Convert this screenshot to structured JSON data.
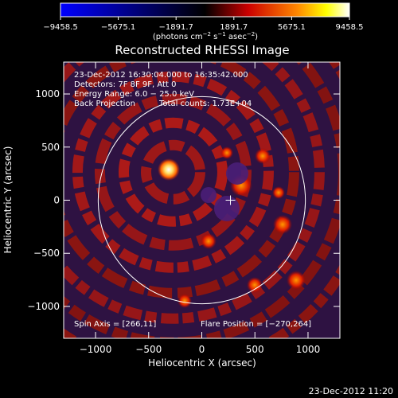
{
  "colorbar": {
    "ticks": [
      "−9458.5",
      "−5675.1",
      "−1891.7",
      "1891.7",
      "5675.1",
      "9458.5"
    ],
    "unit_label": "(photons cm",
    "unit_exp1": "−2",
    "unit_mid": " s",
    "unit_exp2": "−1",
    "unit_end": " asec",
    "unit_exp3": "−2",
    "unit_close": ")",
    "vmin": -9458.5,
    "vmax": 9458.5,
    "colormap": [
      "#0000ff",
      "#000000",
      "#ff0000",
      "#ffff00",
      "#ffffff"
    ]
  },
  "chart_data": {
    "type": "heatmap",
    "title": "Reconstructed RHESSI Image",
    "xlabel": "Heliocentric X (arcsec)",
    "ylabel": "Heliocentric Y (arcsec)",
    "xlim": [
      -1300,
      1300
    ],
    "ylim": [
      -1300,
      1300
    ],
    "xticks": [
      -1000,
      -500,
      0,
      500,
      1000
    ],
    "yticks": [
      -1000,
      -500,
      0,
      500,
      1000
    ],
    "xtick_labels": [
      "−1000",
      "−500",
      "0",
      "500",
      "1000"
    ],
    "ytick_labels": [
      "−1000",
      "−500",
      "0",
      "500",
      "1000"
    ],
    "solar_limb_radius": 975,
    "flare_position": [
      -270,
      264
    ],
    "cross_position": [
      270,
      0
    ],
    "background_color": "#2a1040",
    "annotations": {
      "line1": "23-Dec-2012 16:30:04.000 to 16:35:42.000",
      "line2": "Detectors: 7F 8F 9F, Att 0",
      "line3": "Energy Range: 6.0 − 25.0 keV",
      "line4a": "Back Projection",
      "line4b": "Total counts: 1.73E+04",
      "spin_axis": "Spin Axis = [266,11]",
      "flare_pos_text": "Flare Position = [−270,264]"
    }
  },
  "footer": {
    "timestamp": "23-Dec-2012 11:20"
  }
}
